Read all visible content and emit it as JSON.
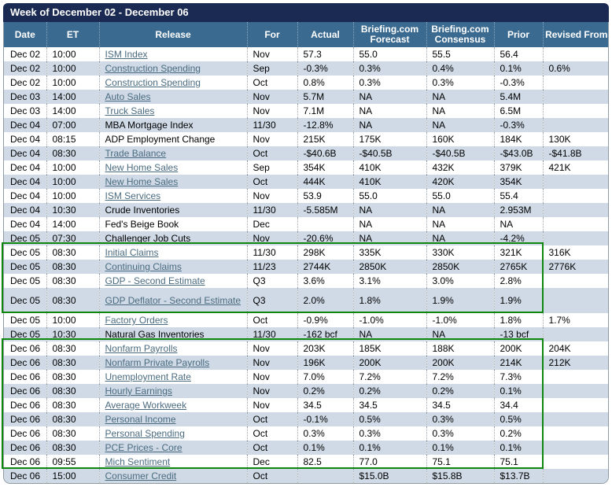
{
  "title": "Week of December 02 - December 06",
  "columns": [
    "Date",
    "ET",
    "Release",
    "For",
    "Actual",
    "Briefing.com Forecast",
    "Briefing.com Consensus",
    "Prior",
    "Revised From"
  ],
  "rows": [
    {
      "date": "Dec 02",
      "et": "10:00",
      "release": "ISM Index",
      "link": true,
      "for": "Nov",
      "actual": "57.3",
      "forecast": "55.0",
      "consensus": "55.5",
      "prior": "56.4",
      "revised": ""
    },
    {
      "date": "Dec 02",
      "et": "10:00",
      "release": "Construction Spending",
      "link": true,
      "for": "Sep",
      "actual": "-0.3%",
      "forecast": "0.3%",
      "consensus": "0.4%",
      "prior": "0.1%",
      "revised": "0.6%"
    },
    {
      "date": "Dec 02",
      "et": "10:00",
      "release": "Construction Spending",
      "link": true,
      "for": "Oct",
      "actual": "0.8%",
      "forecast": "0.3%",
      "consensus": "0.3%",
      "prior": "-0.3%",
      "revised": ""
    },
    {
      "date": "Dec 03",
      "et": "14:00",
      "release": "Auto Sales",
      "link": true,
      "for": "Nov",
      "actual": "5.7M",
      "forecast": "NA",
      "consensus": "NA",
      "prior": "5.4M",
      "revised": ""
    },
    {
      "date": "Dec 03",
      "et": "14:00",
      "release": "Truck Sales",
      "link": true,
      "for": "Nov",
      "actual": "7.1M",
      "forecast": "NA",
      "consensus": "NA",
      "prior": "6.5M",
      "revised": ""
    },
    {
      "date": "Dec 04",
      "et": "07:00",
      "release": "MBA Mortgage Index",
      "link": false,
      "for": "11/30",
      "actual": "-12.8%",
      "forecast": "NA",
      "consensus": "NA",
      "prior": "-0.3%",
      "revised": ""
    },
    {
      "date": "Dec 04",
      "et": "08:15",
      "release": "ADP Employment Change",
      "link": false,
      "for": "Nov",
      "actual": "215K",
      "forecast": "175K",
      "consensus": "160K",
      "prior": "184K",
      "revised": "130K"
    },
    {
      "date": "Dec 04",
      "et": "08:30",
      "release": "Trade Balance",
      "link": true,
      "for": "Oct",
      "actual": "-$40.6B",
      "forecast": "-$40.5B",
      "consensus": "-$40.5B",
      "prior": "-$43.0B",
      "revised": "-$41.8B"
    },
    {
      "date": "Dec 04",
      "et": "10:00",
      "release": "New Home Sales",
      "link": true,
      "for": "Sep",
      "actual": "354K",
      "forecast": "410K",
      "consensus": "432K",
      "prior": "379K",
      "revised": "421K"
    },
    {
      "date": "Dec 04",
      "et": "10:00",
      "release": "New Home Sales",
      "link": true,
      "for": "Oct",
      "actual": "444K",
      "forecast": "410K",
      "consensus": "420K",
      "prior": "354K",
      "revised": ""
    },
    {
      "date": "Dec 04",
      "et": "10:00",
      "release": "ISM Services",
      "link": true,
      "for": "Nov",
      "actual": "53.9",
      "forecast": "55.0",
      "consensus": "55.0",
      "prior": "55.4",
      "revised": ""
    },
    {
      "date": "Dec 04",
      "et": "10:30",
      "release": "Crude Inventories",
      "link": false,
      "for": "11/30",
      "actual": "-5.585M",
      "forecast": "NA",
      "consensus": "NA",
      "prior": "2.953M",
      "revised": ""
    },
    {
      "date": "Dec 04",
      "et": "14:00",
      "release": "Fed's Beige Book",
      "link": false,
      "for": "Dec",
      "actual": "",
      "forecast": "NA",
      "consensus": "NA",
      "prior": "NA",
      "revised": ""
    },
    {
      "date": "Dec 05",
      "et": "07:30",
      "release": "Challenger Job Cuts",
      "link": false,
      "for": "Nov",
      "actual": "-20.6%",
      "forecast": "NA",
      "consensus": "NA",
      "prior": "-4.2%",
      "revised": ""
    },
    {
      "date": "Dec 05",
      "et": "08:30",
      "release": "Initial Claims",
      "link": true,
      "for": "11/30",
      "actual": "298K",
      "forecast": "335K",
      "consensus": "330K",
      "prior": "321K",
      "revised": "316K"
    },
    {
      "date": "Dec 05",
      "et": "08:30",
      "release": "Continuing Claims",
      "link": true,
      "for": "11/23",
      "actual": "2744K",
      "forecast": "2850K",
      "consensus": "2850K",
      "prior": "2765K",
      "revised": "2776K"
    },
    {
      "date": "Dec 05",
      "et": "08:30",
      "release": "GDP - Second Estimate",
      "link": true,
      "for": "Q3",
      "actual": "3.6%",
      "forecast": "3.1%",
      "consensus": "3.0%",
      "prior": "2.8%",
      "revised": ""
    },
    {
      "date": "Dec 05",
      "et": "08:30",
      "release": "GDP Deflator - Second Estimate",
      "link": true,
      "for": "Q3",
      "actual": "2.0%",
      "forecast": "1.8%",
      "consensus": "1.9%",
      "prior": "1.9%",
      "revised": "",
      "tall": true
    },
    {
      "date": "Dec 05",
      "et": "10:00",
      "release": "Factory Orders",
      "link": true,
      "for": "Oct",
      "actual": "-0.9%",
      "forecast": "-1.0%",
      "consensus": "-1.0%",
      "prior": "1.8%",
      "revised": "1.7%"
    },
    {
      "date": "Dec 05",
      "et": "10:30",
      "release": "Natural Gas Inventories",
      "link": false,
      "for": "11/30",
      "actual": "-162 bcf",
      "forecast": "NA",
      "consensus": "NA",
      "prior": "-13 bcf",
      "revised": ""
    },
    {
      "date": "Dec 06",
      "et": "08:30",
      "release": "Nonfarm Payrolls",
      "link": true,
      "for": "Nov",
      "actual": "203K",
      "forecast": "185K",
      "consensus": "188K",
      "prior": "200K",
      "revised": "204K"
    },
    {
      "date": "Dec 06",
      "et": "08:30",
      "release": "Nonfarm Private Payrolls",
      "link": true,
      "for": "Nov",
      "actual": "196K",
      "forecast": "200K",
      "consensus": "200K",
      "prior": "214K",
      "revised": "212K"
    },
    {
      "date": "Dec 06",
      "et": "08:30",
      "release": "Unemployment Rate",
      "link": true,
      "for": "Nov",
      "actual": "7.0%",
      "forecast": "7.2%",
      "consensus": "7.2%",
      "prior": "7.3%",
      "revised": ""
    },
    {
      "date": "Dec 06",
      "et": "08:30",
      "release": "Hourly Earnings",
      "link": true,
      "for": "Nov",
      "actual": "0.2%",
      "forecast": "0.2%",
      "consensus": "0.2%",
      "prior": "0.1%",
      "revised": ""
    },
    {
      "date": "Dec 06",
      "et": "08:30",
      "release": "Average Workweek",
      "link": true,
      "for": "Nov",
      "actual": "34.5",
      "forecast": "34.5",
      "consensus": "34.5",
      "prior": "34.4",
      "revised": ""
    },
    {
      "date": "Dec 06",
      "et": "08:30",
      "release": "Personal Income",
      "link": true,
      "for": "Oct",
      "actual": "-0.1%",
      "forecast": "0.5%",
      "consensus": "0.3%",
      "prior": "0.5%",
      "revised": ""
    },
    {
      "date": "Dec 06",
      "et": "08:30",
      "release": "Personal Spending",
      "link": true,
      "for": "Oct",
      "actual": "0.3%",
      "forecast": "0.3%",
      "consensus": "0.3%",
      "prior": "0.2%",
      "revised": ""
    },
    {
      "date": "Dec 06",
      "et": "08:30",
      "release": "PCE Prices - Core",
      "link": true,
      "for": "Oct",
      "actual": "0.1%",
      "forecast": "0.1%",
      "consensus": "0.1%",
      "prior": "0.1%",
      "revised": ""
    },
    {
      "date": "Dec 06",
      "et": "09:55",
      "release": "Mich Sentiment",
      "link": true,
      "for": "Dec",
      "actual": "82.5",
      "forecast": "77.0",
      "consensus": "75.1",
      "prior": "75.1",
      "revised": ""
    },
    {
      "date": "Dec 06",
      "et": "15:00",
      "release": "Consumer Credit",
      "link": true,
      "for": "Oct",
      "actual": "",
      "forecast": "$15.0B",
      "consensus": "$15.8B",
      "prior": "$13.7B",
      "revised": ""
    }
  ],
  "highlights": [
    {
      "name": "dec05-key-releases"
    },
    {
      "name": "dec06-key-releases"
    }
  ],
  "colors": {
    "title_bar": "#1a2a52",
    "header_bg": "#3a6a90",
    "row_alt": "#cfdae6",
    "row_plain": "#ffffff",
    "link": "#4a6b80",
    "highlight_border": "#0e870e",
    "outer_border": "#8f9aa3"
  }
}
